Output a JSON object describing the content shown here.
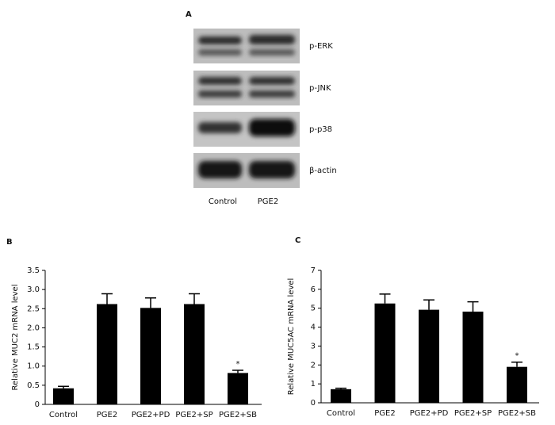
{
  "blot": {
    "panel_label": "A",
    "rows": [
      "p-ERK",
      "p-JNK",
      "p-p38",
      "β-actin"
    ],
    "columns": [
      "Control",
      "PGE2"
    ]
  },
  "chart_data": [
    {
      "type": "bar",
      "panel_label": "B",
      "ylabel": "Relative MUC2 mRNA level",
      "categories": [
        "Control",
        "PGE2",
        "PGE2+PD",
        "PGE2+SP",
        "PGE2+SB"
      ],
      "values": [
        0.42,
        2.62,
        2.52,
        2.62,
        0.82
      ],
      "errors": [
        0.05,
        0.27,
        0.26,
        0.27,
        0.07
      ],
      "significance": [
        null,
        null,
        null,
        null,
        "*"
      ],
      "color": "#000000",
      "ylim": [
        0,
        3.5
      ],
      "yticks": [
        0,
        0.5,
        {
          "value": 1,
          "label": "1.0"
        },
        1.5,
        {
          "value": 2,
          "label": "2.0"
        },
        2.5,
        {
          "value": 3,
          "label": "3.0"
        },
        3.5
      ]
    },
    {
      "type": "bar",
      "panel_label": "C",
      "ylabel": "Relative MUC5AC mRNA level",
      "categories": [
        "Control",
        "PGE2",
        "PGE2+PD",
        "PGE2+SP",
        "PGE2+SB"
      ],
      "values": [
        0.72,
        5.25,
        4.92,
        4.82,
        1.9
      ],
      "errors": [
        0.05,
        0.5,
        0.52,
        0.52,
        0.25
      ],
      "significance": [
        null,
        null,
        null,
        null,
        "*"
      ],
      "color": "#000000",
      "ylim": [
        0,
        7
      ],
      "yticks": [
        0,
        1,
        2,
        3,
        4,
        5,
        6,
        7
      ]
    }
  ]
}
